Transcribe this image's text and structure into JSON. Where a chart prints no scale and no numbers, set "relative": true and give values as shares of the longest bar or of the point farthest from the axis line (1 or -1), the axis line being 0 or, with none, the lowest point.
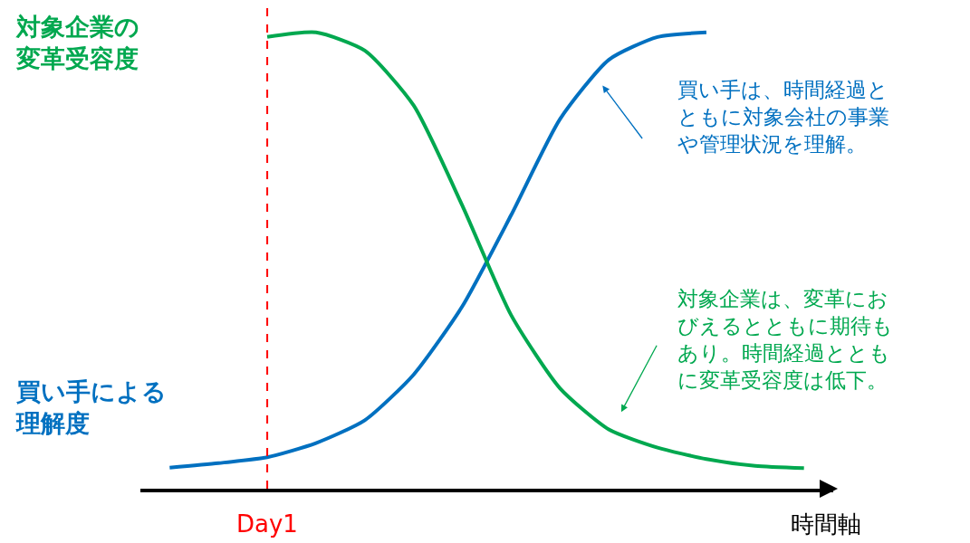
{
  "chart_data": {
    "type": "line",
    "relative": true,
    "xlabel": "時間軸",
    "categories": [
      null,
      null,
      null,
      null,
      null,
      null,
      null,
      null,
      null,
      null,
      null,
      null,
      null,
      null
    ],
    "series": [
      {
        "name": "買い手による理解度",
        "color": "#0070c0",
        "values": [
          0.046,
          0.056,
          0.069,
          0.1,
          0.15,
          0.25,
          0.4,
          0.6,
          0.81,
          0.94,
          0.99,
          1.0,
          null,
          null
        ]
      },
      {
        "name": "対象企業の変革受容度",
        "color": "#00a84f",
        "values": [
          null,
          null,
          0.99,
          1.0,
          0.96,
          0.84,
          0.62,
          0.38,
          0.22,
          0.13,
          0.09,
          0.065,
          0.05,
          0.045
        ]
      }
    ],
    "annotations": [
      "買い手は、時間経過とともに対象会社の事業や管理状況を理解。",
      "対象企業は、変革におびえるとともに期待もあり。時間経過とともに変革受容度は低下。",
      "Day1"
    ],
    "marker": "none",
    "line_style": "solid"
  }
}
